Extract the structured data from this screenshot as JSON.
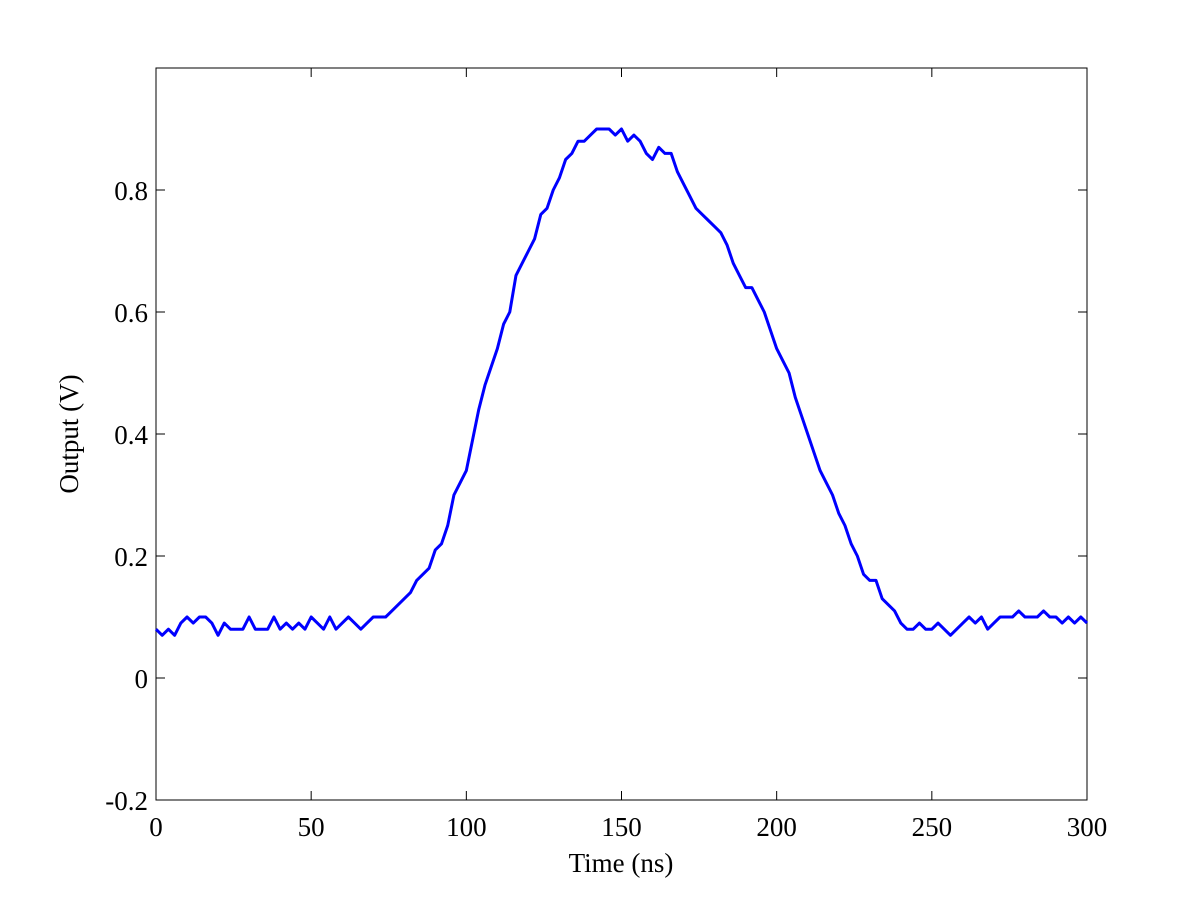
{
  "chart_data": {
    "type": "line",
    "xlabel": "Time (ns)",
    "ylabel": "Output (V)",
    "xlim": [
      0,
      300
    ],
    "ylim": [
      -0.2,
      1.0
    ],
    "xticks": [
      0,
      50,
      100,
      150,
      200,
      250,
      300
    ],
    "yticks": [
      -0.2,
      0,
      0.2,
      0.4,
      0.6,
      0.8
    ],
    "grid": false,
    "x": [
      0,
      2,
      4,
      6,
      8,
      10,
      12,
      14,
      16,
      18,
      20,
      22,
      24,
      26,
      28,
      30,
      32,
      34,
      36,
      38,
      40,
      42,
      44,
      46,
      48,
      50,
      52,
      54,
      56,
      58,
      60,
      62,
      64,
      66,
      68,
      70,
      72,
      74,
      76,
      78,
      80,
      82,
      84,
      86,
      88,
      90,
      92,
      94,
      96,
      98,
      100,
      102,
      104,
      106,
      108,
      110,
      112,
      114,
      116,
      118,
      120,
      122,
      124,
      126,
      128,
      130,
      132,
      134,
      136,
      138,
      140,
      142,
      144,
      146,
      148,
      150,
      152,
      154,
      156,
      158,
      160,
      162,
      164,
      166,
      168,
      170,
      172,
      174,
      176,
      178,
      180,
      182,
      184,
      186,
      188,
      190,
      192,
      194,
      196,
      198,
      200,
      202,
      204,
      206,
      208,
      210,
      212,
      214,
      216,
      218,
      220,
      222,
      224,
      226,
      228,
      230,
      232,
      234,
      236,
      238,
      240,
      242,
      244,
      246,
      248,
      250,
      252,
      254,
      256,
      258,
      260,
      262,
      264,
      266,
      268,
      270,
      272,
      274,
      276,
      278,
      280,
      282,
      284,
      286,
      288,
      290,
      292,
      294,
      296,
      298,
      300
    ],
    "series": [
      {
        "color": "#0000ff",
        "values": [
          0.08,
          0.07,
          0.08,
          0.07,
          0.09,
          0.1,
          0.09,
          0.1,
          0.1,
          0.09,
          0.07,
          0.09,
          0.08,
          0.08,
          0.08,
          0.1,
          0.08,
          0.08,
          0.08,
          0.1,
          0.08,
          0.09,
          0.08,
          0.09,
          0.08,
          0.1,
          0.09,
          0.08,
          0.1,
          0.08,
          0.09,
          0.1,
          0.09,
          0.08,
          0.09,
          0.1,
          0.1,
          0.1,
          0.11,
          0.12,
          0.13,
          0.14,
          0.16,
          0.17,
          0.18,
          0.21,
          0.22,
          0.25,
          0.3,
          0.32,
          0.34,
          0.39,
          0.44,
          0.48,
          0.51,
          0.54,
          0.58,
          0.6,
          0.66,
          0.68,
          0.7,
          0.72,
          0.76,
          0.77,
          0.8,
          0.82,
          0.85,
          0.86,
          0.88,
          0.88,
          0.89,
          0.9,
          0.9,
          0.9,
          0.89,
          0.9,
          0.88,
          0.89,
          0.88,
          0.86,
          0.85,
          0.87,
          0.86,
          0.86,
          0.83,
          0.81,
          0.79,
          0.77,
          0.76,
          0.75,
          0.74,
          0.73,
          0.71,
          0.68,
          0.66,
          0.64,
          0.64,
          0.62,
          0.6,
          0.57,
          0.54,
          0.52,
          0.5,
          0.46,
          0.43,
          0.4,
          0.37,
          0.34,
          0.32,
          0.3,
          0.27,
          0.25,
          0.22,
          0.2,
          0.17,
          0.16,
          0.16,
          0.13,
          0.12,
          0.11,
          0.09,
          0.08,
          0.08,
          0.09,
          0.08,
          0.08,
          0.09,
          0.08,
          0.07,
          0.08,
          0.09,
          0.1,
          0.09,
          0.1,
          0.08,
          0.09,
          0.1,
          0.1,
          0.1,
          0.11,
          0.1,
          0.1,
          0.1,
          0.11,
          0.1,
          0.1,
          0.09,
          0.1,
          0.09,
          0.1,
          0.09
        ]
      }
    ]
  }
}
